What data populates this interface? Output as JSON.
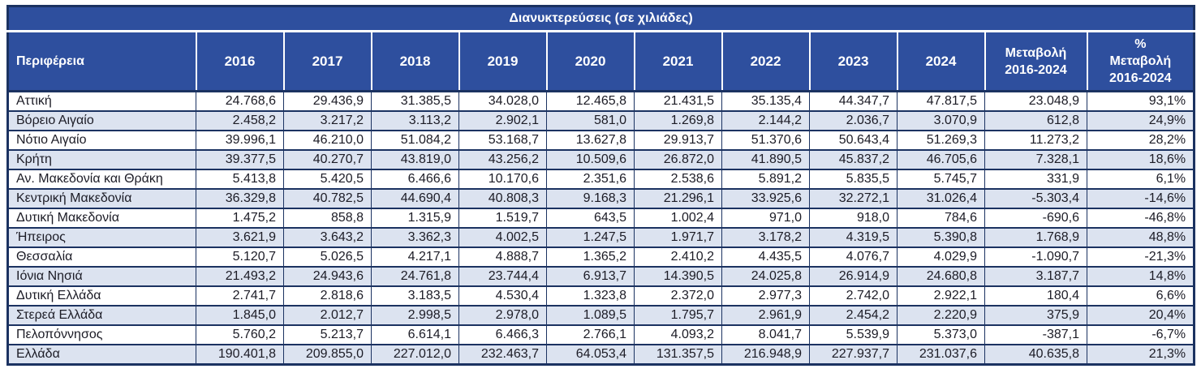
{
  "title": "Διανυκτερεύσεις (σε χιλιάδες)",
  "columns": {
    "region": "Περιφέρεια",
    "years": [
      "2016",
      "2017",
      "2018",
      "2019",
      "2020",
      "2021",
      "2022",
      "2023",
      "2024"
    ],
    "change": "Μεταβολή\n2016-2024",
    "pct_change": "%\nΜεταβολή\n2016-2024"
  },
  "rows": [
    {
      "region": "Αττική",
      "values": [
        "24.768,6",
        "29.436,9",
        "31.385,5",
        "34.028,0",
        "12.465,8",
        "21.431,5",
        "35.135,4",
        "44.347,7",
        "47.817,5"
      ],
      "change": "23.048,9",
      "pct_change": "93,1%"
    },
    {
      "region": "Βόρειο Αιγαίο",
      "values": [
        "2.458,2",
        "3.217,2",
        "3.113,2",
        "2.902,1",
        "581,0",
        "1.269,8",
        "2.144,2",
        "2.036,7",
        "3.070,9"
      ],
      "change": "612,8",
      "pct_change": "24,9%"
    },
    {
      "region": "Νότιο Αιγαίο",
      "values": [
        "39.996,1",
        "46.210,0",
        "51.084,2",
        "53.168,7",
        "13.627,8",
        "29.913,7",
        "51.370,6",
        "50.643,4",
        "51.269,3"
      ],
      "change": "11.273,2",
      "pct_change": "28,2%"
    },
    {
      "region": "Κρήτη",
      "values": [
        "39.377,5",
        "40.270,7",
        "43.819,0",
        "43.256,2",
        "10.509,6",
        "26.872,0",
        "41.890,5",
        "45.837,2",
        "46.705,6"
      ],
      "change": "7.328,1",
      "pct_change": "18,6%"
    },
    {
      "region": "Αν. Μακεδονία και Θράκη",
      "values": [
        "5.413,8",
        "5.420,5",
        "6.466,6",
        "10.170,6",
        "2.351,6",
        "2.538,6",
        "5.891,2",
        "5.835,5",
        "5.745,7"
      ],
      "change": "331,9",
      "pct_change": "6,1%"
    },
    {
      "region": "Κεντρική Μακεδονία",
      "values": [
        "36.329,8",
        "40.782,5",
        "44.690,4",
        "40.808,3",
        "9.168,3",
        "21.296,1",
        "33.925,6",
        "32.272,1",
        "31.026,4"
      ],
      "change": "-5.303,4",
      "pct_change": "-14,6%"
    },
    {
      "region": "Δυτική Μακεδονία",
      "values": [
        "1.475,2",
        "858,8",
        "1.315,9",
        "1.519,7",
        "643,5",
        "1.002,4",
        "971,0",
        "918,0",
        "784,6"
      ],
      "change": "-690,6",
      "pct_change": "-46,8%"
    },
    {
      "region": "Ήπειρος",
      "values": [
        "3.621,9",
        "3.643,2",
        "3.362,3",
        "4.002,5",
        "1.247,5",
        "1.971,7",
        "3.178,2",
        "4.319,5",
        "5.390,8"
      ],
      "change": "1.768,9",
      "pct_change": "48,8%"
    },
    {
      "region": "Θεσσαλία",
      "values": [
        "5.120,7",
        "5.026,5",
        "4.217,1",
        "4.888,7",
        "1.365,2",
        "2.410,2",
        "4.435,5",
        "4.076,7",
        "4.029,9"
      ],
      "change": "-1.090,7",
      "pct_change": "-21,3%"
    },
    {
      "region": "Ιόνια Νησιά",
      "values": [
        "21.493,2",
        "24.943,6",
        "24.761,8",
        "23.744,4",
        "6.913,7",
        "14.390,5",
        "24.025,8",
        "26.914,9",
        "24.680,8"
      ],
      "change": "3.187,7",
      "pct_change": "14,8%"
    },
    {
      "region": "Δυτική Ελλάδα",
      "values": [
        "2.741,7",
        "2.818,6",
        "3.183,5",
        "4.530,4",
        "1.323,8",
        "2.372,0",
        "2.977,3",
        "2.742,0",
        "2.922,1"
      ],
      "change": "180,4",
      "pct_change": "6,6%"
    },
    {
      "region": "Στερεά Ελλάδα",
      "values": [
        "1.845,0",
        "2.012,7",
        "2.998,5",
        "2.978,0",
        "1.089,5",
        "1.795,7",
        "2.961,9",
        "2.454,2",
        "2.220,9"
      ],
      "change": "375,9",
      "pct_change": "20,4%"
    },
    {
      "region": "Πελοπόννησος",
      "values": [
        "5.760,2",
        "5.213,7",
        "6.614,1",
        "6.466,3",
        "2.766,1",
        "4.093,2",
        "8.041,7",
        "5.539,9",
        "5.373,0"
      ],
      "change": "-387,1",
      "pct_change": "-6,7%"
    },
    {
      "region": "Ελλάδα",
      "values": [
        "190.401,8",
        "209.855,0",
        "227.012,0",
        "232.463,7",
        "64.053,4",
        "131.357,5",
        "216.948,9",
        "227.937,7",
        "231.037,6"
      ],
      "change": "40.635,8",
      "pct_change": "21,3%"
    }
  ],
  "colors": {
    "header_bg": "#2e4f9e",
    "border": "#1b3261",
    "alt_row_bg": "#dce3f0",
    "header_text": "#ffffff",
    "body_text": "#1c1c26"
  }
}
